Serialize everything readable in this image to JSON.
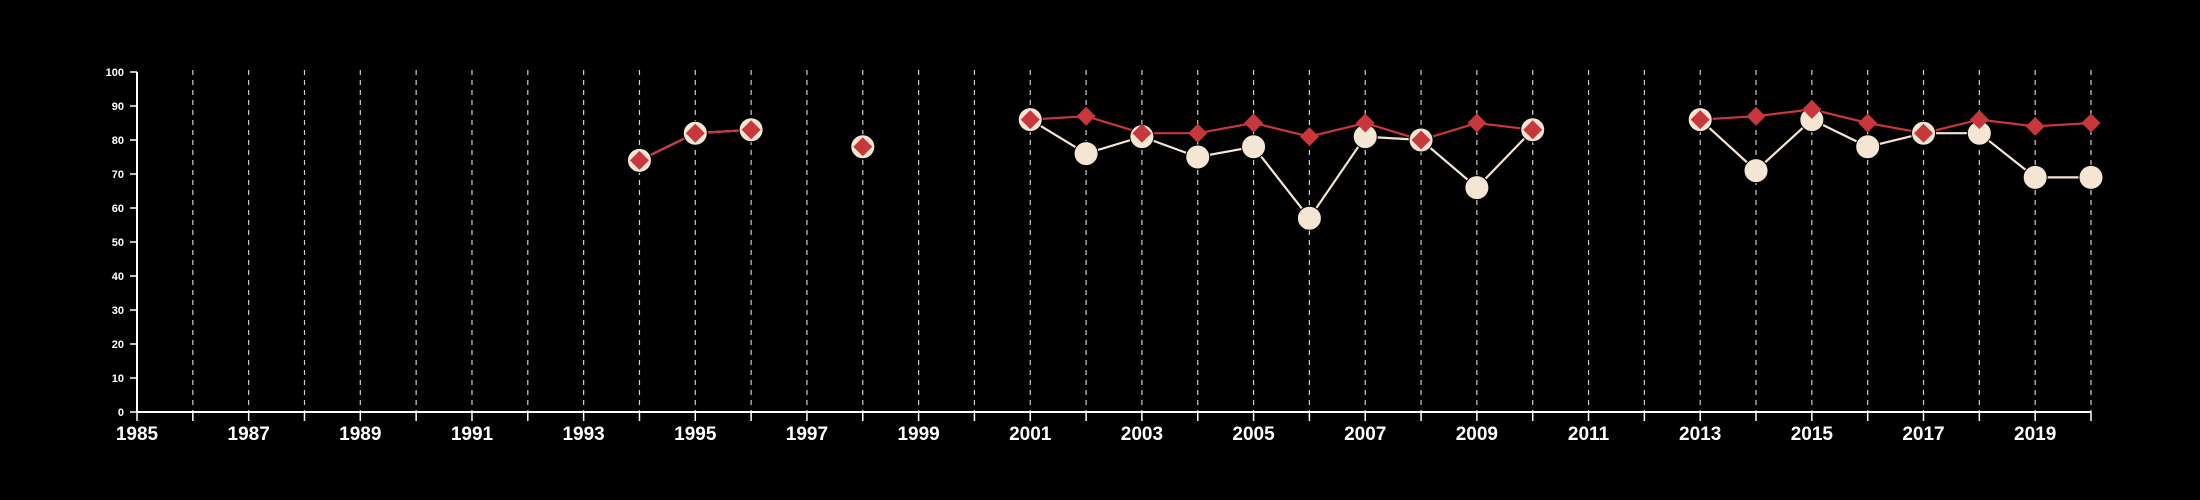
{
  "chart_data": {
    "type": "line",
    "title": "",
    "xlabel": "",
    "ylabel": "",
    "xlim": [
      1985,
      2020
    ],
    "ylim": [
      0,
      100
    ],
    "yticks": [
      0,
      10,
      20,
      30,
      40,
      50,
      60,
      70,
      80,
      90,
      100
    ],
    "xtick_labels": [
      "1985",
      "1987",
      "1989",
      "1991",
      "1993",
      "1995",
      "1997",
      "1999",
      "2001",
      "2003",
      "2005",
      "2007",
      "2009",
      "2011",
      "2013",
      "2015",
      "2017",
      "2019"
    ],
    "grid": "vertical dashed lines at every year",
    "legend": "none",
    "colors": {
      "background": "#000000",
      "axis": "#ffffff",
      "grid": "#cfcfcf",
      "series_a": "#f5e6d3",
      "series_b": "#c8373b"
    },
    "series": [
      {
        "marker": "circle",
        "color": "#f5e6d3",
        "points": [
          {
            "x": 1994,
            "y": 74
          },
          {
            "x": 1995,
            "y": 82
          },
          {
            "x": 1996,
            "y": 83
          },
          {
            "x": 1998,
            "y": 78
          },
          {
            "x": 2001,
            "y": 86
          },
          {
            "x": 2002,
            "y": 76
          },
          {
            "x": 2003,
            "y": 81
          },
          {
            "x": 2004,
            "y": 75
          },
          {
            "x": 2005,
            "y": 78
          },
          {
            "x": 2006,
            "y": 57
          },
          {
            "x": 2007,
            "y": 81
          },
          {
            "x": 2008,
            "y": 80
          },
          {
            "x": 2009,
            "y": 66
          },
          {
            "x": 2010,
            "y": 83
          },
          {
            "x": 2013,
            "y": 86
          },
          {
            "x": 2014,
            "y": 71
          },
          {
            "x": 2015,
            "y": 86
          },
          {
            "x": 2016,
            "y": 78
          },
          {
            "x": 2017,
            "y": 82
          },
          {
            "x": 2018,
            "y": 82
          },
          {
            "x": 2019,
            "y": 69
          },
          {
            "x": 2020,
            "y": 69
          }
        ]
      },
      {
        "marker": "diamond",
        "color": "#c8373b",
        "points": [
          {
            "x": 1994,
            "y": 74
          },
          {
            "x": 1995,
            "y": 82
          },
          {
            "x": 1996,
            "y": 83
          },
          {
            "x": 1998,
            "y": 78
          },
          {
            "x": 2001,
            "y": 86
          },
          {
            "x": 2002,
            "y": 87
          },
          {
            "x": 2003,
            "y": 82
          },
          {
            "x": 2004,
            "y": 82
          },
          {
            "x": 2005,
            "y": 85
          },
          {
            "x": 2006,
            "y": 81
          },
          {
            "x": 2007,
            "y": 85
          },
          {
            "x": 2008,
            "y": 80
          },
          {
            "x": 2009,
            "y": 85
          },
          {
            "x": 2010,
            "y": 83
          },
          {
            "x": 2013,
            "y": 86
          },
          {
            "x": 2014,
            "y": 87
          },
          {
            "x": 2015,
            "y": 89
          },
          {
            "x": 2016,
            "y": 85
          },
          {
            "x": 2017,
            "y": 82
          },
          {
            "x": 2018,
            "y": 86
          },
          {
            "x": 2019,
            "y": 84
          },
          {
            "x": 2020,
            "y": 85
          }
        ]
      }
    ]
  }
}
